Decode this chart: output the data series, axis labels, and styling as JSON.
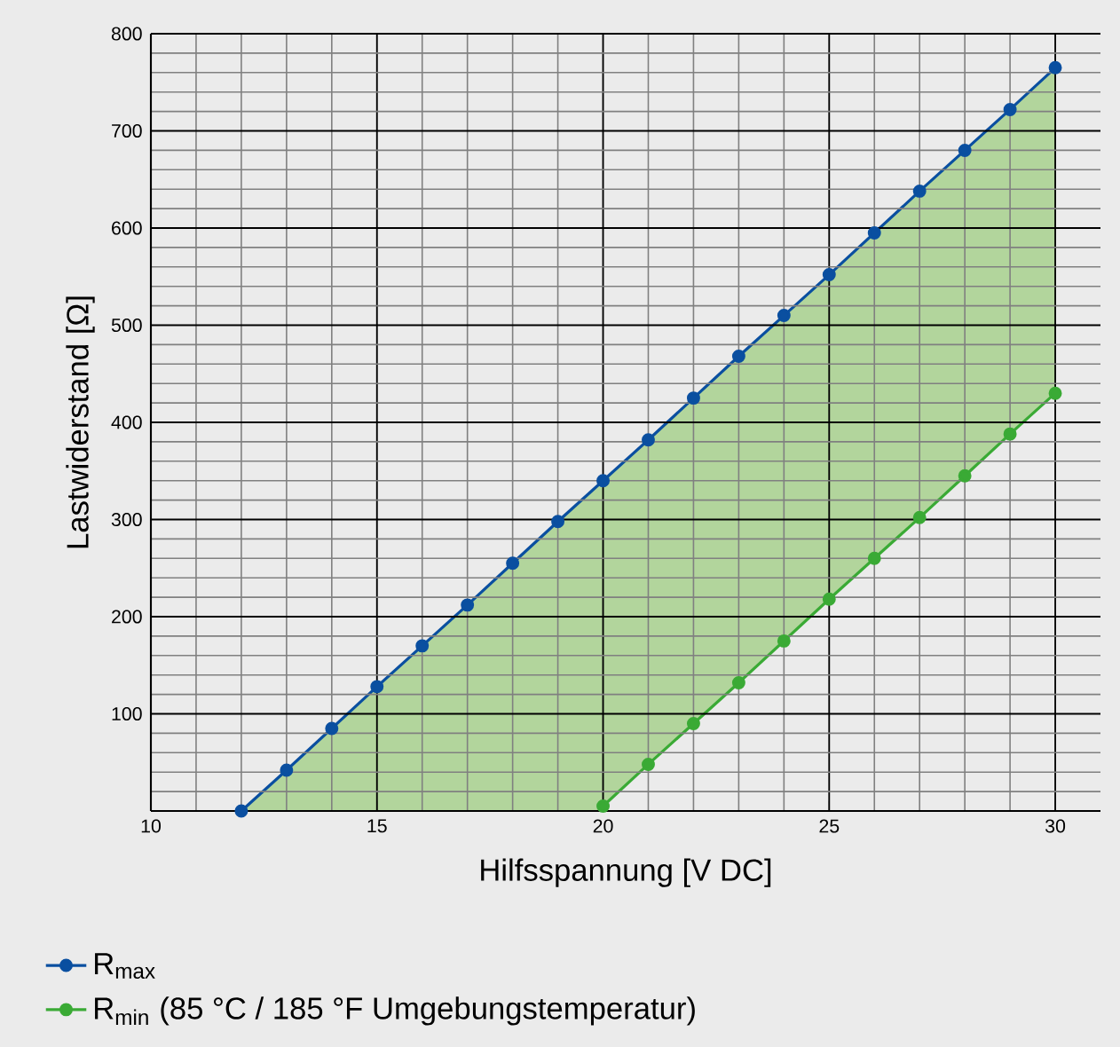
{
  "chart_data": {
    "type": "area",
    "xlabel": "Hilfsspannung [V DC]",
    "ylabel": "Lastwiderstand [Ω]",
    "xlim": [
      10,
      31
    ],
    "ylim": [
      0,
      800
    ],
    "xticks": [
      10,
      15,
      20,
      25,
      30
    ],
    "yticks": [
      {
        "value": 0,
        "label": null
      },
      100,
      200,
      300,
      400,
      500,
      600,
      700,
      800
    ],
    "grid": true,
    "legend": "bottom left",
    "marker": "circle",
    "line_style": "solid",
    "series": [
      {
        "name": "R$_{max}$",
        "color": "#0a4fa0",
        "x": [
          12,
          13,
          14,
          15,
          16,
          17,
          18,
          19,
          20,
          21,
          22,
          23,
          24,
          25,
          26,
          27,
          28,
          29,
          30
        ],
        "values": [
          0,
          42,
          85,
          128,
          170,
          212,
          255,
          298,
          340,
          382,
          425,
          468,
          510,
          552,
          595,
          638,
          680,
          722,
          765
        ]
      },
      {
        "name": "R$_{min}$ (85 °C / 185 °F Umgebungstemperatur)",
        "color": "#3aaa35",
        "x": [
          20,
          21,
          22,
          23,
          24,
          25,
          26,
          27,
          28,
          29,
          30
        ],
        "values": [
          5,
          48,
          90,
          132,
          175,
          218,
          260,
          302,
          345,
          388,
          430
        ]
      }
    ]
  }
}
